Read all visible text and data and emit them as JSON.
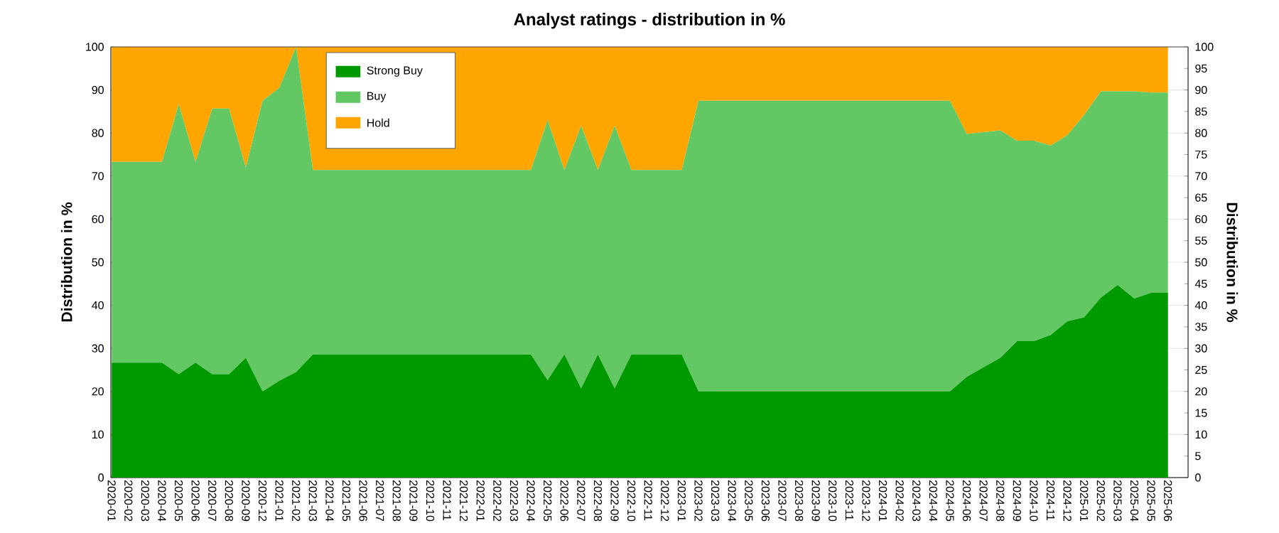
{
  "chart_data": {
    "type": "area",
    "title": "Analyst ratings - distribution in %",
    "ylabel": "Distribution in %",
    "y2label": "Distribution in %",
    "categories": [
      "2020-01",
      "2020-02",
      "2020-03",
      "2020-04",
      "2020-05",
      "2020-06",
      "2020-07",
      "2020-08",
      "2020-09",
      "2020-12",
      "2021-01",
      "2021-02",
      "2021-03",
      "2021-04",
      "2021-05",
      "2021-06",
      "2021-07",
      "2021-08",
      "2021-09",
      "2021-10",
      "2021-11",
      "2021-12",
      "2022-01",
      "2022-02",
      "2022-03",
      "2022-04",
      "2022-05",
      "2022-06",
      "2022-07",
      "2022-08",
      "2022-09",
      "2022-10",
      "2022-11",
      "2022-12",
      "2023-01",
      "2023-02",
      "2023-03",
      "2023-04",
      "2023-05",
      "2023-06",
      "2023-07",
      "2023-08",
      "2023-09",
      "2023-10",
      "2023-11",
      "2023-12",
      "2024-01",
      "2024-02",
      "2024-03",
      "2024-04",
      "2024-05",
      "2024-06",
      "2024-07",
      "2024-08",
      "2024-09",
      "2024-10",
      "2024-11",
      "2024-12",
      "2025-01",
      "2025-02",
      "2025-03",
      "2025-04",
      "2025-05",
      "2025-06"
    ],
    "stacked": true,
    "series": [
      {
        "name": "Strong Buy",
        "color": "#009900",
        "values": [
          26.7,
          26.7,
          26.7,
          26.7,
          24.0,
          26.7,
          24.0,
          24.0,
          27.8,
          20.0,
          22.5,
          24.5,
          28.6,
          28.6,
          28.6,
          28.6,
          28.6,
          28.6,
          28.6,
          28.6,
          28.6,
          28.6,
          28.6,
          28.6,
          28.6,
          28.6,
          22.6,
          28.6,
          20.7,
          28.6,
          20.7,
          28.6,
          28.6,
          28.6,
          28.6,
          20.0,
          20.0,
          20.0,
          20.0,
          20.0,
          20.0,
          20.0,
          20.0,
          20.0,
          20.0,
          20.0,
          20.0,
          20.0,
          20.0,
          20.0,
          20.0,
          23.4,
          25.6,
          27.8,
          31.7,
          31.7,
          33.1,
          36.3,
          37.2,
          41.8,
          44.7,
          41.6,
          42.9,
          42.9
        ]
      },
      {
        "name": "Buy",
        "color": "#63c763",
        "values": [
          46.6,
          46.6,
          46.6,
          46.6,
          62.7,
          46.6,
          61.7,
          61.7,
          44.2,
          67.5,
          68.0,
          75.5,
          42.8,
          42.8,
          42.8,
          42.8,
          42.8,
          42.8,
          42.8,
          42.8,
          42.8,
          42.8,
          42.8,
          42.8,
          42.8,
          42.8,
          60.4,
          42.8,
          61.0,
          42.8,
          61.0,
          42.8,
          42.8,
          42.8,
          42.8,
          67.5,
          67.5,
          67.5,
          67.5,
          67.5,
          67.5,
          67.5,
          67.5,
          67.5,
          67.5,
          67.5,
          67.5,
          67.5,
          67.5,
          67.5,
          67.5,
          56.4,
          54.6,
          52.8,
          46.5,
          46.5,
          44.0,
          43.2,
          47.0,
          47.9,
          45.0,
          48.1,
          46.5,
          46.5
        ]
      },
      {
        "name": "Hold",
        "color": "#ffa500",
        "values": [
          26.7,
          26.7,
          26.7,
          26.7,
          13.3,
          26.7,
          14.3,
          14.3,
          28.0,
          12.5,
          9.5,
          0,
          28.6,
          28.6,
          28.6,
          28.6,
          28.6,
          28.6,
          28.6,
          28.6,
          28.6,
          28.6,
          28.6,
          28.6,
          28.6,
          28.6,
          17.0,
          28.6,
          18.3,
          28.6,
          18.3,
          28.6,
          28.6,
          28.6,
          28.6,
          12.5,
          12.5,
          12.5,
          12.5,
          12.5,
          12.5,
          12.5,
          12.5,
          12.5,
          12.5,
          12.5,
          12.5,
          12.5,
          12.5,
          12.5,
          12.5,
          20.2,
          19.8,
          19.4,
          21.8,
          21.8,
          22.9,
          20.5,
          15.8,
          10.3,
          10.3,
          10.3,
          10.6,
          10.6
        ]
      }
    ],
    "ylim": [
      0,
      100
    ],
    "yticks": [
      0,
      10,
      20,
      30,
      40,
      50,
      60,
      70,
      80,
      90,
      100
    ],
    "y2lim": [
      0,
      100
    ],
    "y2ticks": [
      0,
      5,
      10,
      15,
      20,
      25,
      30,
      35,
      40,
      45,
      50,
      55,
      60,
      65,
      70,
      75,
      80,
      85,
      90,
      95,
      100
    ],
    "grid": "y",
    "legend": "top left"
  }
}
